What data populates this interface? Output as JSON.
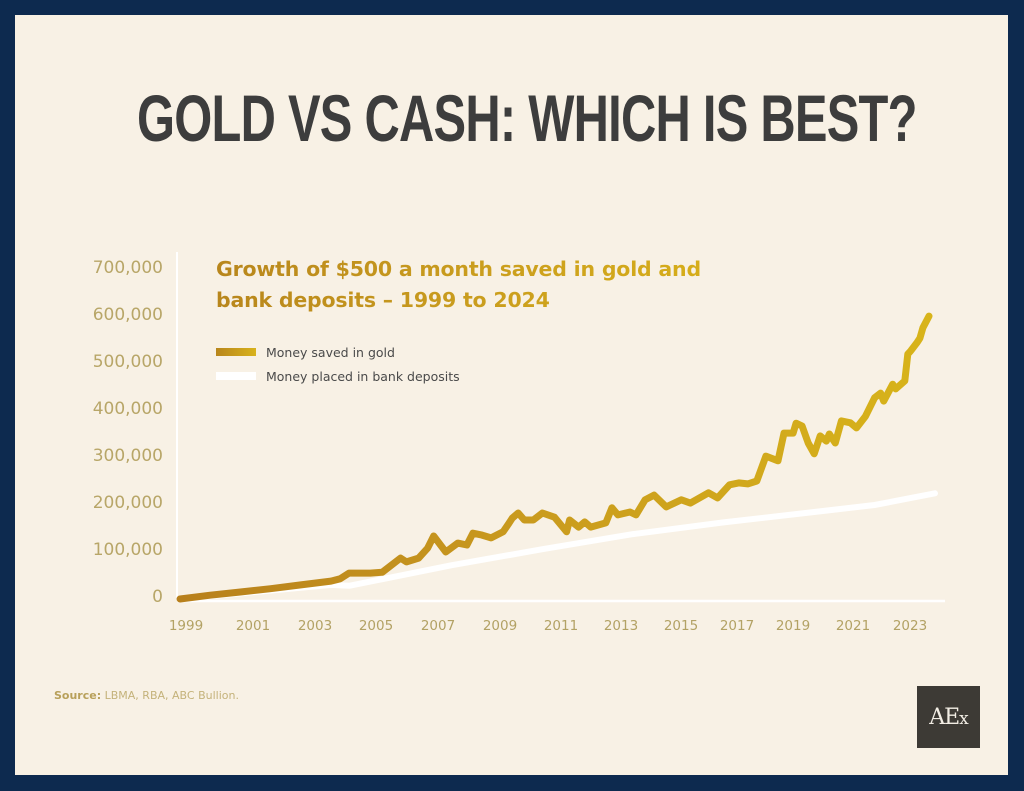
{
  "page": {
    "headline": "GOLD VS CASH: WHICH IS BEST?",
    "source_label": "Source:",
    "source_text": " LBMA, RBA, ABC Bullion.",
    "logo_main": "AE",
    "logo_sub": "x"
  },
  "colors": {
    "frame": "#0d2a4f",
    "background": "#f8f1e5",
    "headline": "#3d3d3d",
    "gold_start": "#b8861c",
    "gold_end": "#d8b21c",
    "bank": "#ffffff",
    "axis_text": "#b8a668"
  },
  "chart_data": {
    "type": "line",
    "title": "Growth of $500 a month saved in gold and bank deposits – 1999 to 2024",
    "title_lines": [
      "Growth of $500 a month saved in gold and",
      "bank deposits – 1999 to 2024"
    ],
    "xlabel": "",
    "ylabel": "",
    "xlim": [
      1999,
      2024
    ],
    "ylim": [
      0,
      700000
    ],
    "grid": false,
    "legend_position": "top-left",
    "x_tick_labels": [
      "1999",
      "2001",
      "2003",
      "2005",
      "2007",
      "2009",
      "2011",
      "2013",
      "2015",
      "2017",
      "2019",
      "2021",
      "2023"
    ],
    "y_tick_labels": [
      "700,000",
      "600,000",
      "500,000",
      "400,000",
      "300,000",
      "200,000",
      "100,000",
      "0"
    ],
    "y_tick_values": [
      700000,
      600000,
      500000,
      400000,
      300000,
      200000,
      100000,
      0
    ],
    "series": [
      {
        "name": "Money saved in gold",
        "color": "#c99c1e",
        "points": [
          [
            1999.0,
            0
          ],
          [
            2000.0,
            8000
          ],
          [
            2001.0,
            15000
          ],
          [
            2002.0,
            22000
          ],
          [
            2003.0,
            30000
          ],
          [
            2004.0,
            38000
          ],
          [
            2004.3,
            43000
          ],
          [
            2004.6,
            55000
          ],
          [
            2005.1,
            55000
          ],
          [
            2005.3,
            55000
          ],
          [
            2005.7,
            57000
          ],
          [
            2006.3,
            87000
          ],
          [
            2006.5,
            79000
          ],
          [
            2006.9,
            87000
          ],
          [
            2007.2,
            108000
          ],
          [
            2007.4,
            134000
          ],
          [
            2007.8,
            100000
          ],
          [
            2008.2,
            119000
          ],
          [
            2008.5,
            115000
          ],
          [
            2008.7,
            140000
          ],
          [
            2009.0,
            136000
          ],
          [
            2009.3,
            130000
          ],
          [
            2009.7,
            143000
          ],
          [
            2009.9,
            162000
          ],
          [
            2010.0,
            172000
          ],
          [
            2010.2,
            183000
          ],
          [
            2010.4,
            168000
          ],
          [
            2010.7,
            168000
          ],
          [
            2011.0,
            183000
          ],
          [
            2011.4,
            174000
          ],
          [
            2011.8,
            143000
          ],
          [
            2011.9,
            168000
          ],
          [
            2012.2,
            153000
          ],
          [
            2012.4,
            164000
          ],
          [
            2012.6,
            153000
          ],
          [
            2013.1,
            162000
          ],
          [
            2013.3,
            194000
          ],
          [
            2013.5,
            179000
          ],
          [
            2013.9,
            185000
          ],
          [
            2014.1,
            179000
          ],
          [
            2014.4,
            211000
          ],
          [
            2014.7,
            221000
          ],
          [
            2015.1,
            196000
          ],
          [
            2015.6,
            211000
          ],
          [
            2015.9,
            204000
          ],
          [
            2016.5,
            226000
          ],
          [
            2016.8,
            215000
          ],
          [
            2017.2,
            243000
          ],
          [
            2017.5,
            247000
          ],
          [
            2017.8,
            245000
          ],
          [
            2018.1,
            251000
          ],
          [
            2018.4,
            304000
          ],
          [
            2018.8,
            294000
          ],
          [
            2019.0,
            353000
          ],
          [
            2019.3,
            353000
          ],
          [
            2019.4,
            374000
          ],
          [
            2019.6,
            368000
          ],
          [
            2019.8,
            332000
          ],
          [
            2020.0,
            309000
          ],
          [
            2020.2,
            347000
          ],
          [
            2020.4,
            336000
          ],
          [
            2020.5,
            351000
          ],
          [
            2020.7,
            332000
          ],
          [
            2020.9,
            379000
          ],
          [
            2021.2,
            375000
          ],
          [
            2021.4,
            364000
          ],
          [
            2021.7,
            389000
          ],
          [
            2022.0,
            428000
          ],
          [
            2022.2,
            438000
          ],
          [
            2022.3,
            421000
          ],
          [
            2022.6,
            457000
          ],
          [
            2022.7,
            447000
          ],
          [
            2023.0,
            464000
          ],
          [
            2023.1,
            521000
          ],
          [
            2023.2,
            528000
          ],
          [
            2023.4,
            545000
          ],
          [
            2023.5,
            555000
          ],
          [
            2023.6,
            577000
          ],
          [
            2023.8,
            602000
          ]
        ]
      },
      {
        "name": "Money placed in bank deposits",
        "color": "#ffffff",
        "points": [
          [
            1999.0,
            0
          ],
          [
            2004.0,
            30000
          ],
          [
            2004.6,
            28000
          ],
          [
            2008.0,
            72000
          ],
          [
            2011.0,
            106000
          ],
          [
            2014.0,
            138000
          ],
          [
            2017.0,
            163000
          ],
          [
            2020.0,
            185000
          ],
          [
            2022.0,
            200000
          ],
          [
            2024.0,
            225000
          ]
        ]
      }
    ]
  }
}
